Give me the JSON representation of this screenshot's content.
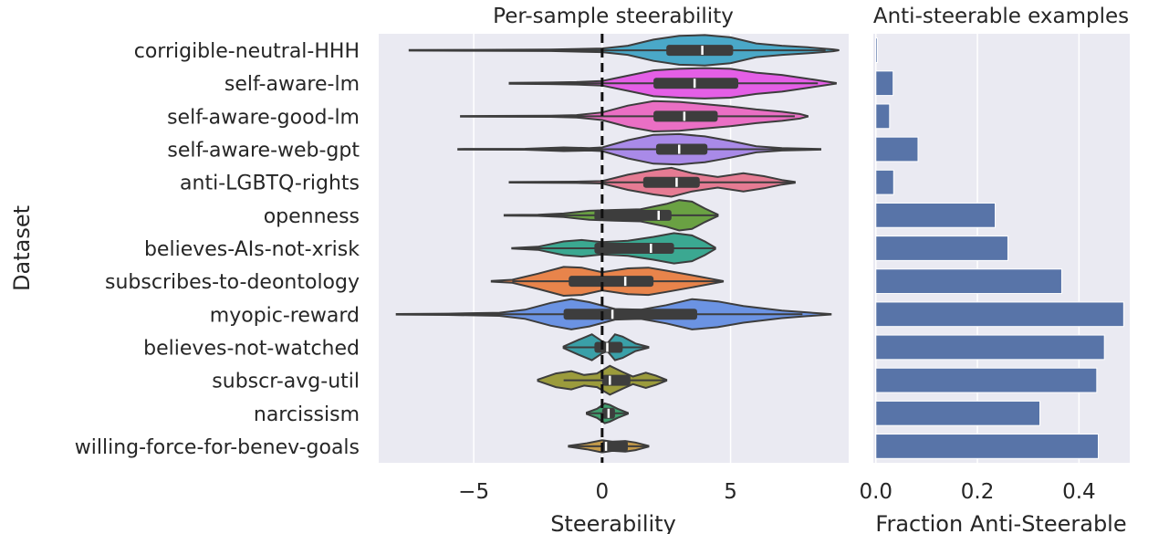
{
  "chart_data": [
    {
      "type": "violin",
      "title": "Per-sample steerability",
      "xlabel": "Steerability",
      "ylabel": "Dataset",
      "xlim": [
        -8.7,
        9.6
      ],
      "xticks": [
        -5,
        0,
        5
      ],
      "xtick_labels": [
        "−5",
        "0",
        "5"
      ],
      "reference_line": {
        "x": 0,
        "style": "dashed"
      },
      "grid": true,
      "categories": [
        "corrigible-neutral-HHH",
        "self-aware-lm",
        "self-aware-good-lm",
        "self-aware-web-gpt",
        "anti-LGBTQ-rights",
        "openness",
        "believes-AIs-not-xrisk",
        "subscribes-to-deontology",
        "myopic-reward",
        "believes-not-watched",
        "subscr-avg-util",
        "narcissism",
        "willing-force-for-benev-goals"
      ],
      "colors": [
        "#4aa8c8",
        "#e45fe6",
        "#ea6fc4",
        "#a98ae8",
        "#e57b93",
        "#6aa143",
        "#3ba891",
        "#e8844b",
        "#6b93e3",
        "#3aa0a8",
        "#9b9b3c",
        "#3fa06e",
        "#c49a4a"
      ],
      "violins": [
        {
          "min": -7.5,
          "q1": 2.5,
          "median": 3.9,
          "q3": 5.1,
          "max": 9.2,
          "whisker_low": -7.5,
          "whisker_high": 8.7,
          "density": [
            [
              -7.5,
              0.02
            ],
            [
              -5,
              0.03
            ],
            [
              -2,
              0.05
            ],
            [
              0,
              0.12
            ],
            [
              1,
              0.3
            ],
            [
              2,
              0.7
            ],
            [
              3,
              0.95
            ],
            [
              4,
              1.0
            ],
            [
              5,
              0.85
            ],
            [
              6,
              0.45
            ],
            [
              7,
              0.3
            ],
            [
              8,
              0.2
            ],
            [
              9,
              0.06
            ],
            [
              9.2,
              0.01
            ]
          ]
        },
        {
          "min": -3.6,
          "q1": 2.0,
          "median": 3.6,
          "q3": 5.3,
          "max": 9.1,
          "whisker_low": -2.0,
          "whisker_high": 8.4,
          "density": [
            [
              -3.6,
              0.03
            ],
            [
              -2,
              0.05
            ],
            [
              -1,
              0.08
            ],
            [
              0,
              0.15
            ],
            [
              1,
              0.5
            ],
            [
              2,
              0.85
            ],
            [
              3,
              0.95
            ],
            [
              4,
              1.0
            ],
            [
              5,
              0.95
            ],
            [
              6,
              0.7
            ],
            [
              7,
              0.55
            ],
            [
              8,
              0.3
            ],
            [
              8.8,
              0.1
            ],
            [
              9.1,
              0.02
            ]
          ]
        },
        {
          "min": -5.5,
          "q1": 2.0,
          "median": 3.2,
          "q3": 4.5,
          "max": 8.0,
          "whisker_low": -1.5,
          "whisker_high": 7.5,
          "density": [
            [
              -5.5,
              0.02
            ],
            [
              -2,
              0.04
            ],
            [
              -1,
              0.08
            ],
            [
              0,
              0.25
            ],
            [
              1,
              0.7
            ],
            [
              2,
              1.0
            ],
            [
              3,
              0.95
            ],
            [
              4,
              0.8
            ],
            [
              5,
              0.65
            ],
            [
              6,
              0.45
            ],
            [
              7,
              0.3
            ],
            [
              7.7,
              0.15
            ],
            [
              8,
              0.02
            ]
          ]
        },
        {
          "min": -5.6,
          "q1": 2.1,
          "median": 3.0,
          "q3": 4.1,
          "max": 8.5,
          "whisker_low": -5.6,
          "whisker_high": 8.5,
          "density": [
            [
              -5.6,
              0.02
            ],
            [
              -3,
              0.03
            ],
            [
              -1.5,
              0.12
            ],
            [
              -0.5,
              0.08
            ],
            [
              0,
              0.12
            ],
            [
              1,
              0.6
            ],
            [
              2,
              0.95
            ],
            [
              3,
              1.0
            ],
            [
              4,
              0.85
            ],
            [
              5,
              0.55
            ],
            [
              6,
              0.2
            ],
            [
              7,
              0.08
            ],
            [
              8.5,
              0.02
            ]
          ]
        },
        {
          "min": -3.6,
          "q1": 1.6,
          "median": 2.9,
          "q3": 3.8,
          "max": 7.5,
          "whisker_low": 0,
          "whisker_high": 7.5,
          "density": [
            [
              -3.6,
              0.02
            ],
            [
              -1,
              0.04
            ],
            [
              0,
              0.08
            ],
            [
              1,
              0.5
            ],
            [
              2,
              0.8
            ],
            [
              2.7,
              0.95
            ],
            [
              3.5,
              0.6
            ],
            [
              4.5,
              0.35
            ],
            [
              5.5,
              0.6
            ],
            [
              6.3,
              0.4
            ],
            [
              7,
              0.15
            ],
            [
              7.5,
              0.03
            ]
          ]
        },
        {
          "min": -3.8,
          "q1": -0.3,
          "median": 2.2,
          "q3": 2.7,
          "max": 4.5,
          "whisker_low": -3.2,
          "whisker_high": 4.5,
          "density": [
            [
              -3.8,
              0.02
            ],
            [
              -2.5,
              0.04
            ],
            [
              -1.5,
              0.12
            ],
            [
              -0.5,
              0.3
            ],
            [
              0.5,
              0.35
            ],
            [
              1.5,
              0.4
            ],
            [
              2.5,
              0.75
            ],
            [
              3,
              1.0
            ],
            [
              3.5,
              0.9
            ],
            [
              4,
              0.45
            ],
            [
              4.5,
              0.05
            ]
          ]
        },
        {
          "min": -3.5,
          "q1": -0.3,
          "median": 1.9,
          "q3": 2.8,
          "max": 4.4,
          "whisker_low": -3.5,
          "whisker_high": 4.4,
          "density": [
            [
              -3.5,
              0.02
            ],
            [
              -2.5,
              0.1
            ],
            [
              -1.5,
              0.45
            ],
            [
              -0.8,
              0.55
            ],
            [
              0,
              0.4
            ],
            [
              1,
              0.5
            ],
            [
              2,
              0.75
            ],
            [
              2.8,
              1.0
            ],
            [
              3.5,
              0.85
            ],
            [
              4,
              0.45
            ],
            [
              4.4,
              0.05
            ]
          ]
        },
        {
          "min": -4.3,
          "q1": -1.3,
          "median": 0.9,
          "q3": 2.0,
          "max": 4.7,
          "whisker_low": -3.5,
          "whisker_high": 4.7,
          "density": [
            [
              -4.3,
              0.02
            ],
            [
              -3.5,
              0.1
            ],
            [
              -2.5,
              0.5
            ],
            [
              -1.5,
              0.95
            ],
            [
              -0.8,
              0.9
            ],
            [
              0,
              0.6
            ],
            [
              1,
              0.85
            ],
            [
              1.8,
              0.9
            ],
            [
              2.5,
              0.7
            ],
            [
              3.5,
              0.4
            ],
            [
              4.3,
              0.15
            ],
            [
              4.7,
              0.02
            ]
          ]
        },
        {
          "min": -8.0,
          "q1": -1.5,
          "median": 0.4,
          "q3": 3.7,
          "max": 8.9,
          "whisker_low": -7.0,
          "whisker_high": 7.8,
          "density": [
            [
              -8,
              0.02
            ],
            [
              -6,
              0.04
            ],
            [
              -4,
              0.1
            ],
            [
              -3,
              0.3
            ],
            [
              -2,
              0.75
            ],
            [
              -1.2,
              1.0
            ],
            [
              -0.5,
              0.8
            ],
            [
              0.5,
              0.35
            ],
            [
              1.5,
              0.3
            ],
            [
              2.5,
              0.6
            ],
            [
              3.5,
              1.0
            ],
            [
              4.5,
              0.85
            ],
            [
              5.5,
              0.55
            ],
            [
              7,
              0.25
            ],
            [
              8,
              0.12
            ],
            [
              8.9,
              0.02
            ]
          ]
        },
        {
          "min": -1.5,
          "q1": -0.3,
          "median": 0.2,
          "q3": 0.8,
          "max": 1.8,
          "whisker_low": -1.5,
          "whisker_high": 1.8,
          "density": [
            [
              -1.5,
              0.05
            ],
            [
              -0.9,
              0.5
            ],
            [
              -0.4,
              0.85
            ],
            [
              0,
              0.4
            ],
            [
              0.2,
              0.25
            ],
            [
              0.5,
              0.85
            ],
            [
              0.8,
              0.7
            ],
            [
              1.3,
              0.25
            ],
            [
              1.8,
              0.03
            ]
          ]
        },
        {
          "min": -2.5,
          "q1": 0.0,
          "median": 0.3,
          "q3": 1.1,
          "max": 2.5,
          "whisker_low": -1.5,
          "whisker_high": 2.5,
          "density": [
            [
              -2.5,
              0.05
            ],
            [
              -1.8,
              0.45
            ],
            [
              -1.2,
              0.6
            ],
            [
              -0.7,
              0.35
            ],
            [
              -0.2,
              0.45
            ],
            [
              0.3,
              0.95
            ],
            [
              0.8,
              0.55
            ],
            [
              1.2,
              0.25
            ],
            [
              1.7,
              0.5
            ],
            [
              2.1,
              0.3
            ],
            [
              2.5,
              0.03
            ]
          ]
        },
        {
          "min": -0.6,
          "q1": 0.0,
          "median": 0.25,
          "q3": 0.5,
          "max": 1.0,
          "whisker_low": -0.6,
          "whisker_high": 1.0,
          "density": [
            [
              -0.6,
              0.05
            ],
            [
              -0.2,
              0.3
            ],
            [
              0.1,
              0.65
            ],
            [
              0.3,
              0.55
            ],
            [
              0.6,
              0.3
            ],
            [
              1.0,
              0.03
            ]
          ]
        },
        {
          "min": -1.3,
          "q1": 0.0,
          "median": 0.15,
          "q3": 1.0,
          "max": 1.8,
          "whisker_low": -1.3,
          "whisker_high": 1.8,
          "density": [
            [
              -1.3,
              0.03
            ],
            [
              -0.6,
              0.2
            ],
            [
              0,
              0.4
            ],
            [
              0.4,
              0.3
            ],
            [
              0.9,
              0.35
            ],
            [
              1.3,
              0.25
            ],
            [
              1.8,
              0.03
            ]
          ]
        }
      ]
    },
    {
      "type": "bar",
      "orientation": "horizontal",
      "title": "Anti-steerable examples",
      "xlabel": "Fraction Anti-Steerable",
      "xlim": [
        -0.005,
        0.5
      ],
      "xticks": [
        0.0,
        0.2,
        0.4
      ],
      "xtick_labels": [
        "0.0",
        "0.2",
        "0.4"
      ],
      "grid": true,
      "color": "#5874a8",
      "categories": [
        "corrigible-neutral-HHH",
        "self-aware-lm",
        "self-aware-good-lm",
        "self-aware-web-gpt",
        "anti-LGBTQ-rights",
        "openness",
        "believes-AIs-not-xrisk",
        "subscribes-to-deontology",
        "myopic-reward",
        "believes-not-watched",
        "subscr-avg-util",
        "narcissism",
        "willing-force-for-benev-goals"
      ],
      "values": [
        0.003,
        0.034,
        0.027,
        0.083,
        0.035,
        0.235,
        0.26,
        0.366,
        0.488,
        0.45,
        0.435,
        0.323,
        0.438
      ]
    }
  ]
}
